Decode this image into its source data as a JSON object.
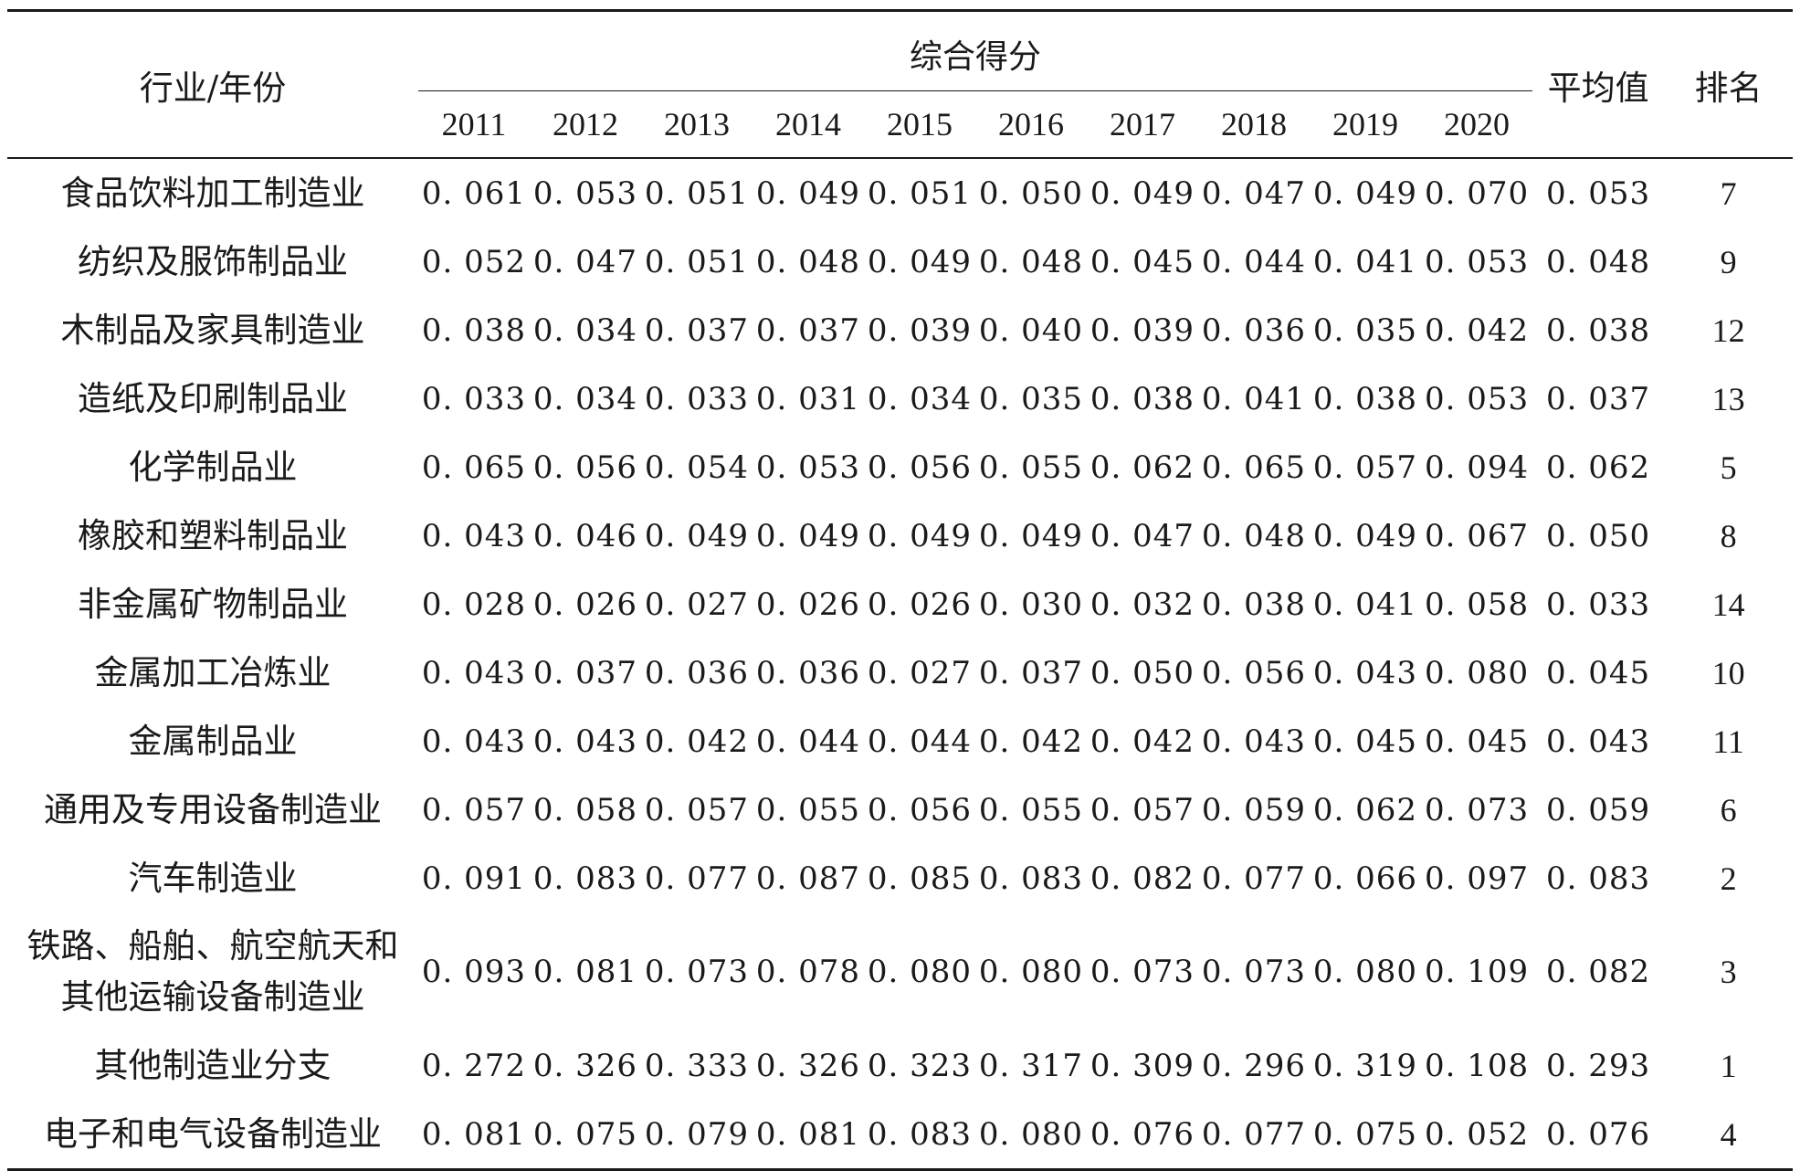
{
  "header": {
    "industry_year": "行业/年份",
    "composite_score": "综合得分",
    "average": "平均值",
    "rank": "排名",
    "years": [
      "2011",
      "2012",
      "2013",
      "2014",
      "2015",
      "2016",
      "2017",
      "2018",
      "2019",
      "2020"
    ]
  },
  "rows": [
    {
      "name": "食品饮料加工制造业",
      "scores": [
        "0. 061",
        "0. 053",
        "0. 051",
        "0. 049",
        "0. 051",
        "0. 050",
        "0. 049",
        "0. 047",
        "0. 049",
        "0. 070"
      ],
      "avg": "0. 053",
      "rank": "7"
    },
    {
      "name": "纺织及服饰制品业",
      "scores": [
        "0. 052",
        "0. 047",
        "0. 051",
        "0. 048",
        "0. 049",
        "0. 048",
        "0. 045",
        "0. 044",
        "0. 041",
        "0. 053"
      ],
      "avg": "0. 048",
      "rank": "9"
    },
    {
      "name": "木制品及家具制造业",
      "scores": [
        "0. 038",
        "0. 034",
        "0. 037",
        "0. 037",
        "0. 039",
        "0. 040",
        "0. 039",
        "0. 036",
        "0. 035",
        "0. 042"
      ],
      "avg": "0. 038",
      "rank": "12"
    },
    {
      "name": "造纸及印刷制品业",
      "scores": [
        "0. 033",
        "0. 034",
        "0. 033",
        "0. 031",
        "0. 034",
        "0. 035",
        "0. 038",
        "0. 041",
        "0. 038",
        "0. 053"
      ],
      "avg": "0. 037",
      "rank": "13"
    },
    {
      "name": "化学制品业",
      "scores": [
        "0. 065",
        "0. 056",
        "0. 054",
        "0. 053",
        "0. 056",
        "0. 055",
        "0. 062",
        "0. 065",
        "0. 057",
        "0. 094"
      ],
      "avg": "0. 062",
      "rank": "5"
    },
    {
      "name": "橡胶和塑料制品业",
      "scores": [
        "0. 043",
        "0. 046",
        "0. 049",
        "0. 049",
        "0. 049",
        "0. 049",
        "0. 047",
        "0. 048",
        "0. 049",
        "0. 067"
      ],
      "avg": "0. 050",
      "rank": "8"
    },
    {
      "name": "非金属矿物制品业",
      "scores": [
        "0. 028",
        "0. 026",
        "0. 027",
        "0. 026",
        "0. 026",
        "0. 030",
        "0. 032",
        "0. 038",
        "0. 041",
        "0. 058"
      ],
      "avg": "0. 033",
      "rank": "14"
    },
    {
      "name": "金属加工冶炼业",
      "scores": [
        "0. 043",
        "0. 037",
        "0. 036",
        "0. 036",
        "0. 027",
        "0. 037",
        "0. 050",
        "0. 056",
        "0. 043",
        "0. 080"
      ],
      "avg": "0. 045",
      "rank": "10"
    },
    {
      "name": "金属制品业",
      "scores": [
        "0. 043",
        "0. 043",
        "0. 042",
        "0. 044",
        "0. 044",
        "0. 042",
        "0. 042",
        "0. 043",
        "0. 045",
        "0. 045"
      ],
      "avg": "0. 043",
      "rank": "11"
    },
    {
      "name": "通用及专用设备制造业",
      "scores": [
        "0. 057",
        "0. 058",
        "0. 057",
        "0. 055",
        "0. 056",
        "0. 055",
        "0. 057",
        "0. 059",
        "0. 062",
        "0. 073"
      ],
      "avg": "0. 059",
      "rank": "6"
    },
    {
      "name": "汽车制造业",
      "scores": [
        "0. 091",
        "0. 083",
        "0. 077",
        "0. 087",
        "0. 085",
        "0. 083",
        "0. 082",
        "0. 077",
        "0. 066",
        "0. 097"
      ],
      "avg": "0. 083",
      "rank": "2"
    },
    {
      "name": "铁路、船舶、航空航天和其他运输设备制造业",
      "name_line1": "铁路、船舶、航空航天和",
      "name_line2": "其他运输设备制造业",
      "scores": [
        "0. 093",
        "0. 081",
        "0. 073",
        "0. 078",
        "0. 080",
        "0. 080",
        "0. 073",
        "0. 073",
        "0. 080",
        "0. 109"
      ],
      "avg": "0. 082",
      "rank": "3"
    },
    {
      "name": "其他制造业分支",
      "scores": [
        "0. 272",
        "0. 326",
        "0. 333",
        "0. 326",
        "0. 323",
        "0. 317",
        "0. 309",
        "0. 296",
        "0. 319",
        "0. 108"
      ],
      "avg": "0. 293",
      "rank": "1"
    },
    {
      "name": "电子和电气设备制造业",
      "scores": [
        "0. 081",
        "0. 075",
        "0. 079",
        "0. 081",
        "0. 083",
        "0. 080",
        "0. 076",
        "0. 077",
        "0. 075",
        "0. 052"
      ],
      "avg": "0. 076",
      "rank": "4"
    }
  ]
}
